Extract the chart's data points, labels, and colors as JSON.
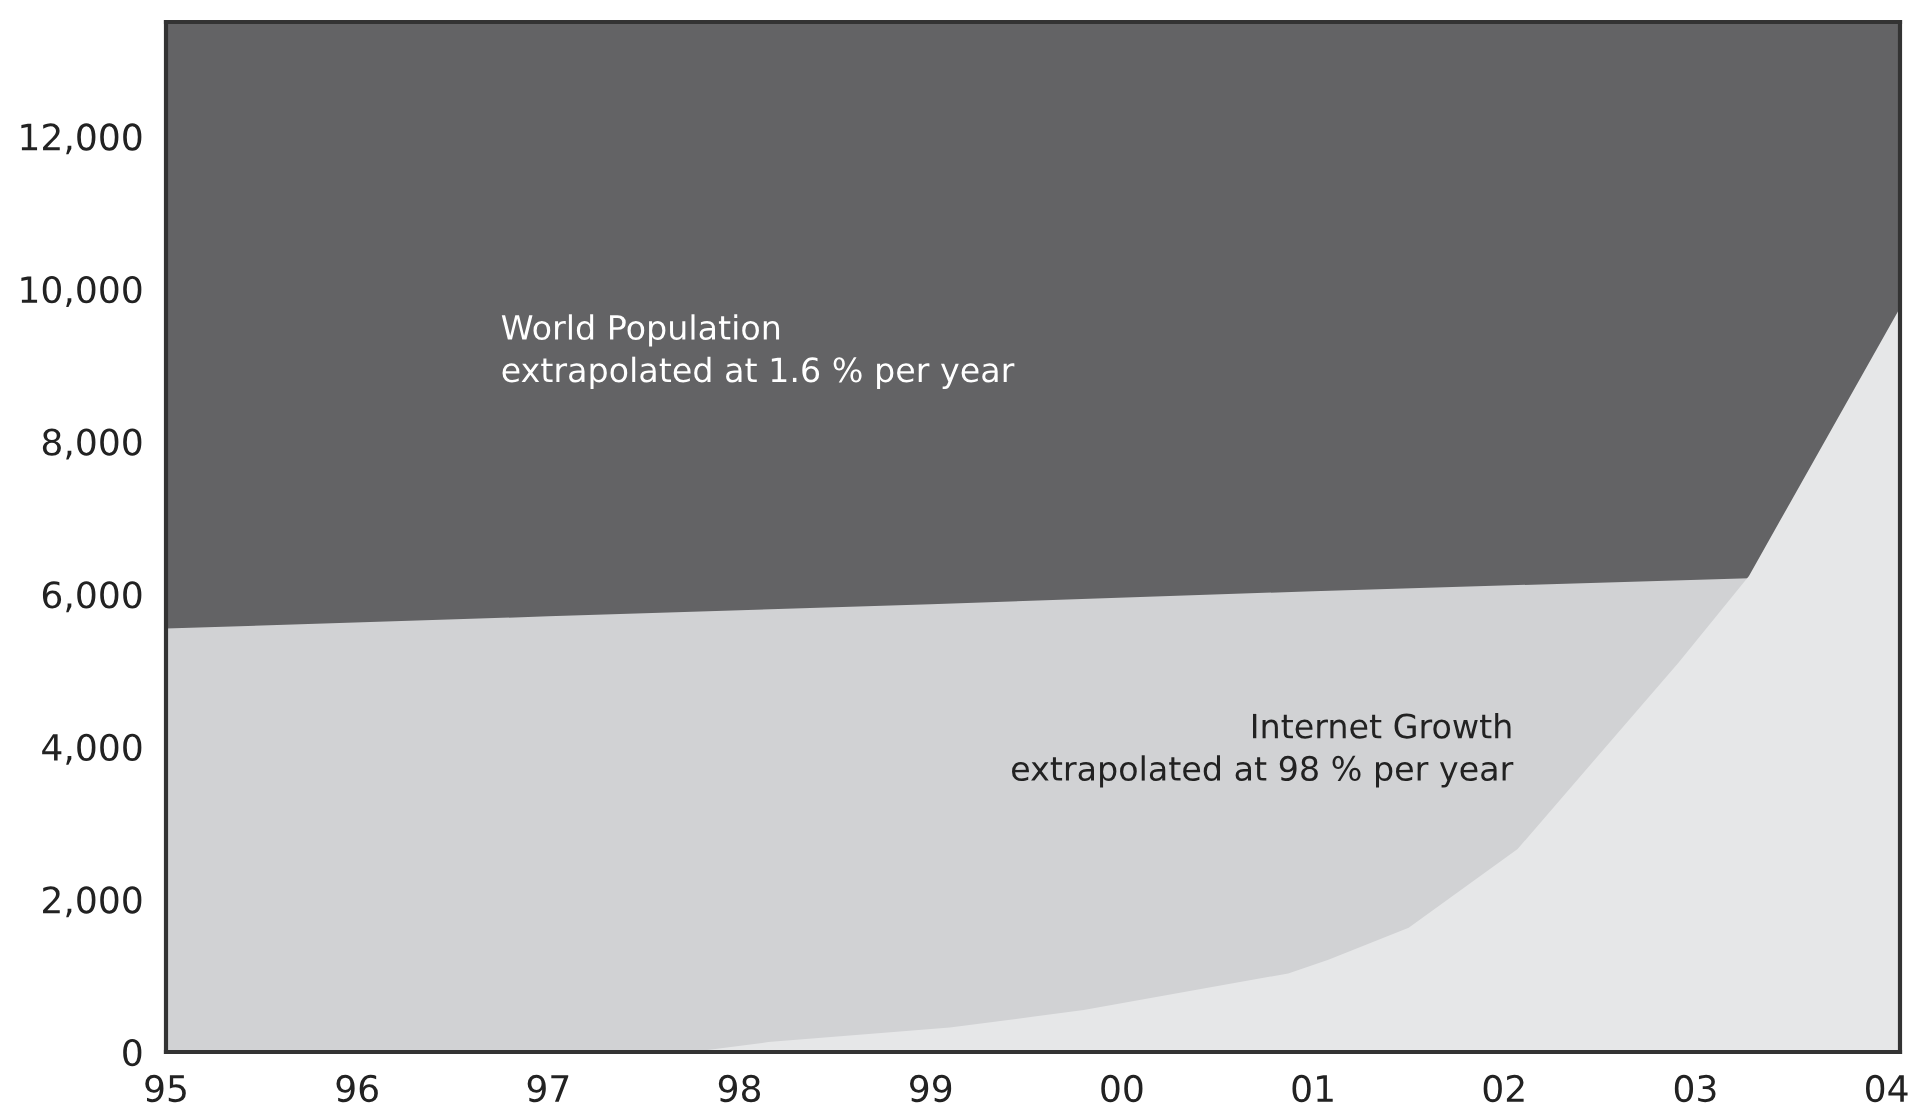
{
  "chart_data": {
    "type": "area",
    "series": [
      {
        "color": "#d1d2d4",
        "x": [
          1995,
          1997,
          1999,
          2001,
          2003.28
        ],
        "values": [
          5550,
          5710,
          5870,
          6040,
          6210
        ]
      },
      {
        "color": "#e6e7e8",
        "x": [
          1997.75,
          1998.15,
          1999.1,
          1999.8,
          2000.87,
          2001.08,
          2001.5,
          2002.07,
          2002.91,
          2003.28,
          2004.06
        ],
        "values": [
          0,
          130,
          320,
          550,
          1030,
          1210,
          1630,
          2660,
          5100,
          6240,
          9710
        ]
      }
    ],
    "annotations": [
      "World Population\nextrapolated at 1.6 % per year",
      "Internet Growth\nextrapolated at 98 % per year"
    ],
    "xlim": [
      1995,
      2004.07
    ],
    "xticks": [
      {
        "value": 1995,
        "label": "95"
      },
      {
        "value": 1996,
        "label": "96"
      },
      {
        "value": 1997,
        "label": "97"
      },
      {
        "value": 1998,
        "label": "98"
      },
      {
        "value": 1999,
        "label": "99"
      },
      {
        "value": 2000,
        "label": "00"
      },
      {
        "value": 2001,
        "label": "01"
      },
      {
        "value": 2002,
        "label": "02"
      },
      {
        "value": 2003,
        "label": "03"
      },
      {
        "value": 2004,
        "label": "04"
      }
    ],
    "ylim": [
      0,
      13500
    ],
    "yticks": [
      {
        "value": 0,
        "label": "0"
      },
      {
        "value": 2000,
        "label": "2,000"
      },
      {
        "value": 4000,
        "label": "4,000"
      },
      {
        "value": 6000,
        "label": "6,000"
      },
      {
        "value": 8000,
        "label": "8,000"
      },
      {
        "value": 10000,
        "label": "10,000"
      },
      {
        "value": 12000,
        "label": "12,000"
      }
    ],
    "grid": false
  }
}
